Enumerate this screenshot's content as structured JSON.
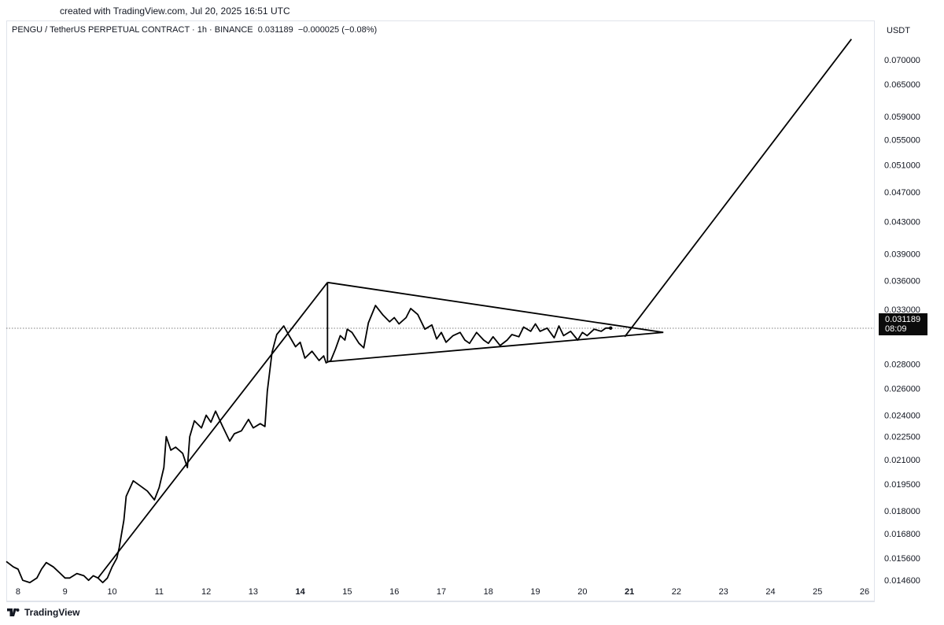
{
  "header": {
    "credit": "created with TradingView.com, Jul 20, 2025 16:51 UTC"
  },
  "legend": {
    "symbol": "PENGU / TetherUS PERPETUAL CONTRACT · 1h · BINANCE",
    "last": "0.031189",
    "change": "−0.000025 (−0.08%)"
  },
  "price_label": {
    "value": "0.031189",
    "countdown": "08:09"
  },
  "branding": {
    "logo_text": "TradingView"
  },
  "colors": {
    "line": "#000000",
    "text": "#131722",
    "grid": "#e0e3eb",
    "tag_bg": "#0b0b0b"
  },
  "chart_data": {
    "type": "line",
    "symbol": "PENGU/USDT",
    "interval": "1h",
    "y_unit": "USDT",
    "y_scale": "log",
    "ylim": [
      0.0137,
      0.0788
    ],
    "x_ticks": [
      "8",
      "9",
      "10",
      "11",
      "12",
      "13",
      "14",
      "15",
      "16",
      "17",
      "18",
      "19",
      "20",
      "21",
      "22",
      "23",
      "24",
      "25",
      "26"
    ],
    "x_range_days": [
      7.75,
      26.2
    ],
    "y_ticks": [
      "0.070000",
      "0.065000",
      "0.059000",
      "0.055000",
      "0.051000",
      "0.047000",
      "0.043000",
      "0.039000",
      "0.036000",
      "0.033000",
      "0.028000",
      "0.026000",
      "0.024000",
      "0.022500",
      "0.021000",
      "0.019500",
      "0.018000",
      "0.016800",
      "0.015600",
      "0.014600"
    ],
    "series": [
      {
        "x": [
          7.75,
          7.9,
          8.0,
          8.1,
          8.25,
          8.4,
          8.5,
          8.6,
          8.75,
          8.9,
          9.0,
          9.1,
          9.25,
          9.4,
          9.5,
          9.6,
          9.7,
          9.8,
          9.9,
          10.0,
          10.1,
          10.15,
          10.25,
          10.3,
          10.45,
          10.6,
          10.75,
          10.9,
          11.0,
          11.1,
          11.15,
          11.25,
          11.35,
          11.5,
          11.6,
          11.65,
          11.75,
          11.9,
          12.0,
          12.1,
          12.2,
          12.35,
          12.5,
          12.6,
          12.75,
          12.9,
          13.0,
          13.15,
          13.25,
          13.3,
          13.4,
          13.5,
          13.65,
          13.75,
          13.9,
          14.0,
          14.1,
          14.25,
          14.4,
          14.5,
          14.55,
          14.65,
          14.75,
          14.85,
          14.95,
          15.0,
          15.1,
          15.25,
          15.35,
          15.45,
          15.6,
          15.75,
          15.9,
          16.0,
          16.1,
          16.25,
          16.35,
          16.5,
          16.65,
          16.8,
          16.9,
          17.0,
          17.1,
          17.25,
          17.4,
          17.5,
          17.6,
          17.75,
          17.9,
          18.0,
          18.1,
          18.25,
          18.4,
          18.5,
          18.65,
          18.75,
          18.9,
          19.0,
          19.1,
          19.25,
          19.4,
          19.5,
          19.6,
          19.75,
          19.9,
          20.0,
          20.1,
          20.25,
          20.4,
          20.5,
          20.6
        ],
        "y": [
          0.01545,
          0.0152,
          0.0151,
          0.0146,
          0.0145,
          0.0147,
          0.0151,
          0.0154,
          0.0152,
          0.0149,
          0.0147,
          0.0147,
          0.0149,
          0.0148,
          0.0146,
          0.0148,
          0.0147,
          0.0145,
          0.0147,
          0.0152,
          0.0156,
          0.0161,
          0.0175,
          0.0188,
          0.0197,
          0.0194,
          0.0191,
          0.0186,
          0.0193,
          0.0205,
          0.0225,
          0.0216,
          0.0218,
          0.0214,
          0.0205,
          0.0225,
          0.0236,
          0.0231,
          0.024,
          0.0235,
          0.0243,
          0.0232,
          0.0222,
          0.0227,
          0.0229,
          0.0237,
          0.0231,
          0.0234,
          0.0232,
          0.0258,
          0.029,
          0.0306,
          0.0314,
          0.0306,
          0.0295,
          0.0299,
          0.0285,
          0.0291,
          0.0283,
          0.0287,
          0.0281,
          0.0283,
          0.0293,
          0.0305,
          0.0301,
          0.0311,
          0.0308,
          0.0298,
          0.0294,
          0.0317,
          0.0334,
          0.0325,
          0.0318,
          0.0322,
          0.0316,
          0.0322,
          0.0331,
          0.0325,
          0.0311,
          0.0315,
          0.0302,
          0.0308,
          0.0299,
          0.0305,
          0.0308,
          0.0301,
          0.0298,
          0.0308,
          0.0301,
          0.0298,
          0.0304,
          0.0296,
          0.0301,
          0.0306,
          0.0304,
          0.0313,
          0.0309,
          0.0316,
          0.0309,
          0.0312,
          0.0303,
          0.0314,
          0.0305,
          0.0309,
          0.0301,
          0.0308,
          0.0305,
          0.0311,
          0.0309,
          0.0312,
          0.0312
        ]
      }
    ],
    "drawings": [
      {
        "name": "flagpole",
        "points": [
          [
            9.7,
            0.0147
          ],
          [
            14.58,
            0.0358
          ]
        ]
      },
      {
        "name": "flag-pole-vertical",
        "points": [
          [
            14.58,
            0.0358
          ],
          [
            14.58,
            0.0282
          ]
        ]
      },
      {
        "name": "triangle-upper-edge",
        "points": [
          [
            14.58,
            0.0358
          ],
          [
            21.72,
            0.0308
          ]
        ]
      },
      {
        "name": "triangle-lower-edge",
        "points": [
          [
            14.58,
            0.0282
          ],
          [
            21.72,
            0.0308
          ]
        ]
      },
      {
        "name": "breakout-projection",
        "points": [
          [
            20.9,
            0.0304
          ],
          [
            25.72,
            0.0745
          ]
        ]
      }
    ]
  }
}
